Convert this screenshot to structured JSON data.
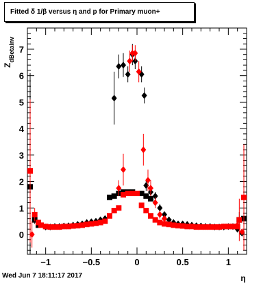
{
  "title": "Fitted δ 1/β versus η and p for Primary muon+",
  "timestamp": "Wed Jun  7 18:11:17 2017",
  "chart_data": {
    "type": "scatter",
    "xlabel": "η",
    "ylabel_main": "Z",
    "ylabel_sub": "dBetaInv",
    "xlim": [
      -1.2,
      1.2
    ],
    "ylim": [
      -0.75,
      7.8
    ],
    "xticks": [
      -1,
      -0.5,
      0,
      0.5,
      1
    ],
    "xtick_labels": [
      "−1",
      "−0.5",
      "0",
      "0.5",
      "1"
    ],
    "yticks": [
      0,
      1,
      2,
      3,
      4,
      5,
      6,
      7
    ],
    "ytick_labels": [
      "0",
      "1",
      "2",
      "3",
      "4",
      "5",
      "6",
      "7"
    ],
    "series": [
      {
        "color": "#000000",
        "points": [
          {
            "x": -1.17,
            "y": 1.8,
            "err": 4.3,
            "marker": "square"
          },
          {
            "x": -1.12,
            "y": 0.55,
            "err": 0.15,
            "marker": "square"
          },
          {
            "x": -1.08,
            "y": 0.35,
            "err": 0.1,
            "marker": "square"
          },
          {
            "x": -0.3,
            "y": 1.4,
            "err": 0.08,
            "marker": "square"
          },
          {
            "x": -0.25,
            "y": 1.45,
            "err": 0.08,
            "marker": "square"
          },
          {
            "x": -0.2,
            "y": 1.55,
            "err": 0.08,
            "marker": "square"
          },
          {
            "x": -0.15,
            "y": 1.6,
            "err": 0.06,
            "marker": "square"
          },
          {
            "x": -0.1,
            "y": 1.6,
            "err": 0.06,
            "marker": "square"
          },
          {
            "x": -0.05,
            "y": 1.6,
            "err": 0.06,
            "marker": "square"
          },
          {
            "x": 0.05,
            "y": 1.55,
            "err": 0.06,
            "marker": "square"
          },
          {
            "x": 0.1,
            "y": 1.45,
            "err": 0.06,
            "marker": "square"
          },
          {
            "x": 0.15,
            "y": 1.35,
            "err": 0.06,
            "marker": "square"
          },
          {
            "x": 1.12,
            "y": 0.55,
            "err": 0.3,
            "marker": "square"
          },
          {
            "x": 1.17,
            "y": 0.6,
            "err": 0.5,
            "marker": "square"
          },
          {
            "x": -0.25,
            "y": 5.15,
            "err": 1.0,
            "marker": "diamond"
          },
          {
            "x": -0.2,
            "y": 6.35,
            "err": 0.45,
            "marker": "diamond"
          },
          {
            "x": -0.15,
            "y": 6.4,
            "err": 0.45,
            "marker": "diamond"
          },
          {
            "x": -0.1,
            "y": 6.05,
            "err": 0.3,
            "marker": "diamond"
          },
          {
            "x": -0.05,
            "y": 6.8,
            "err": 0.4,
            "marker": "diamond"
          },
          {
            "x": -0.02,
            "y": 6.55,
            "err": 0.3,
            "marker": "diamond"
          },
          {
            "x": 0.05,
            "y": 6.05,
            "err": 0.3,
            "marker": "diamond"
          },
          {
            "x": 0.08,
            "y": 5.25,
            "err": 0.3,
            "marker": "diamond"
          },
          {
            "x": 0.1,
            "y": 1.85,
            "err": 0.2,
            "marker": "diamond"
          },
          {
            "x": 0.15,
            "y": 1.6,
            "err": 0.15,
            "marker": "diamond"
          },
          {
            "x": 0.2,
            "y": 1.45,
            "err": 0.15,
            "marker": "diamond"
          },
          {
            "x": 0.25,
            "y": 1.0,
            "err": 0.15,
            "marker": "diamond"
          },
          {
            "x": 0.3,
            "y": 0.75,
            "err": 0.1,
            "marker": "diamond"
          },
          {
            "x": 0.35,
            "y": 0.55,
            "err": 0.1,
            "marker": "diamond"
          },
          {
            "x": -1.0,
            "y": 0.28,
            "err": 0.05,
            "marker": "diamond"
          },
          {
            "x": -0.95,
            "y": 0.28,
            "err": 0.05,
            "marker": "diamond"
          },
          {
            "x": -0.9,
            "y": 0.3,
            "err": 0.05,
            "marker": "diamond"
          },
          {
            "x": -0.85,
            "y": 0.3,
            "err": 0.05,
            "marker": "diamond"
          },
          {
            "x": -0.8,
            "y": 0.32,
            "err": 0.05,
            "marker": "diamond"
          },
          {
            "x": -0.75,
            "y": 0.33,
            "err": 0.05,
            "marker": "diamond"
          },
          {
            "x": -0.7,
            "y": 0.35,
            "err": 0.05,
            "marker": "diamond"
          },
          {
            "x": -0.65,
            "y": 0.38,
            "err": 0.05,
            "marker": "diamond"
          },
          {
            "x": -0.6,
            "y": 0.4,
            "err": 0.05,
            "marker": "diamond"
          },
          {
            "x": -0.55,
            "y": 0.45,
            "err": 0.05,
            "marker": "diamond"
          },
          {
            "x": -0.5,
            "y": 0.48,
            "err": 0.05,
            "marker": "diamond"
          },
          {
            "x": -0.45,
            "y": 0.5,
            "err": 0.05,
            "marker": "diamond"
          },
          {
            "x": -0.4,
            "y": 0.55,
            "err": 0.05,
            "marker": "diamond"
          },
          {
            "x": -0.35,
            "y": 0.6,
            "err": 0.05,
            "marker": "diamond"
          },
          {
            "x": 0.4,
            "y": 0.45,
            "err": 0.05,
            "marker": "diamond"
          },
          {
            "x": 0.45,
            "y": 0.4,
            "err": 0.05,
            "marker": "diamond"
          },
          {
            "x": 0.5,
            "y": 0.4,
            "err": 0.05,
            "marker": "diamond"
          },
          {
            "x": 0.55,
            "y": 0.38,
            "err": 0.05,
            "marker": "diamond"
          },
          {
            "x": 0.6,
            "y": 0.35,
            "err": 0.05,
            "marker": "diamond"
          },
          {
            "x": 0.65,
            "y": 0.33,
            "err": 0.05,
            "marker": "diamond"
          },
          {
            "x": 0.7,
            "y": 0.32,
            "err": 0.05,
            "marker": "diamond"
          },
          {
            "x": 0.75,
            "y": 0.3,
            "err": 0.05,
            "marker": "diamond"
          },
          {
            "x": 0.8,
            "y": 0.3,
            "err": 0.05,
            "marker": "diamond"
          },
          {
            "x": 0.85,
            "y": 0.28,
            "err": 0.05,
            "marker": "diamond"
          },
          {
            "x": 0.9,
            "y": 0.28,
            "err": 0.05,
            "marker": "diamond"
          },
          {
            "x": 0.95,
            "y": 0.28,
            "err": 0.05,
            "marker": "diamond"
          },
          {
            "x": 1.0,
            "y": 0.3,
            "err": 0.05,
            "marker": "diamond"
          },
          {
            "x": 1.05,
            "y": 0.3,
            "err": 0.05,
            "marker": "diamond"
          },
          {
            "x": 1.1,
            "y": 0.2,
            "err": 0.08,
            "marker": "diamond"
          },
          {
            "x": 1.15,
            "y": 0.05,
            "err": 0.1,
            "marker": "diamond"
          }
        ]
      },
      {
        "color": "#ff0000",
        "points": [
          {
            "x": -1.17,
            "y": 2.4,
            "err": 2.7,
            "marker": "square"
          },
          {
            "x": -1.15,
            "y": 0.0,
            "err": 0.5,
            "marker": "diamond"
          },
          {
            "x": -1.12,
            "y": 0.75,
            "err": 0.25,
            "marker": "square"
          },
          {
            "x": -1.08,
            "y": 0.45,
            "err": 0.1,
            "marker": "square"
          },
          {
            "x": -1.05,
            "y": 0.35,
            "err": 0.05,
            "marker": "square"
          },
          {
            "x": -1.0,
            "y": 0.3,
            "err": 0.05,
            "marker": "square"
          },
          {
            "x": -0.95,
            "y": 0.28,
            "err": 0.05,
            "marker": "square"
          },
          {
            "x": -0.9,
            "y": 0.28,
            "err": 0.05,
            "marker": "square"
          },
          {
            "x": -0.85,
            "y": 0.28,
            "err": 0.05,
            "marker": "square"
          },
          {
            "x": -0.8,
            "y": 0.3,
            "err": 0.05,
            "marker": "square"
          },
          {
            "x": -0.75,
            "y": 0.3,
            "err": 0.05,
            "marker": "square"
          },
          {
            "x": -0.7,
            "y": 0.32,
            "err": 0.05,
            "marker": "square"
          },
          {
            "x": -0.65,
            "y": 0.33,
            "err": 0.05,
            "marker": "square"
          },
          {
            "x": -0.6,
            "y": 0.35,
            "err": 0.05,
            "marker": "square"
          },
          {
            "x": -0.55,
            "y": 0.38,
            "err": 0.05,
            "marker": "square"
          },
          {
            "x": -0.5,
            "y": 0.4,
            "err": 0.05,
            "marker": "square"
          },
          {
            "x": -0.45,
            "y": 0.42,
            "err": 0.05,
            "marker": "square"
          },
          {
            "x": -0.4,
            "y": 0.45,
            "err": 0.05,
            "marker": "square"
          },
          {
            "x": -0.35,
            "y": 0.5,
            "err": 0.05,
            "marker": "square"
          },
          {
            "x": -0.3,
            "y": 0.7,
            "err": 0.06,
            "marker": "square"
          },
          {
            "x": -0.25,
            "y": 0.9,
            "err": 0.06,
            "marker": "square"
          },
          {
            "x": -0.2,
            "y": 1.0,
            "err": 0.06,
            "marker": "square"
          },
          {
            "x": -0.15,
            "y": 1.5,
            "err": 0.06,
            "marker": "square"
          },
          {
            "x": -0.1,
            "y": 1.55,
            "err": 0.06,
            "marker": "square"
          },
          {
            "x": -0.05,
            "y": 1.55,
            "err": 0.06,
            "marker": "square"
          },
          {
            "x": 0.0,
            "y": 1.55,
            "err": 0.06,
            "marker": "square"
          },
          {
            "x": 0.05,
            "y": 1.1,
            "err": 0.06,
            "marker": "square"
          },
          {
            "x": 0.1,
            "y": 0.9,
            "err": 0.06,
            "marker": "square"
          },
          {
            "x": 0.15,
            "y": 0.7,
            "err": 0.06,
            "marker": "square"
          },
          {
            "x": 0.2,
            "y": 0.55,
            "err": 0.05,
            "marker": "square"
          },
          {
            "x": 0.25,
            "y": 0.45,
            "err": 0.05,
            "marker": "square"
          },
          {
            "x": 0.3,
            "y": 0.4,
            "err": 0.05,
            "marker": "square"
          },
          {
            "x": 0.35,
            "y": 0.38,
            "err": 0.05,
            "marker": "square"
          },
          {
            "x": 0.4,
            "y": 0.35,
            "err": 0.05,
            "marker": "square"
          },
          {
            "x": 0.45,
            "y": 0.33,
            "err": 0.05,
            "marker": "square"
          },
          {
            "x": 0.5,
            "y": 0.32,
            "err": 0.05,
            "marker": "square"
          },
          {
            "x": 0.55,
            "y": 0.3,
            "err": 0.05,
            "marker": "square"
          },
          {
            "x": 0.6,
            "y": 0.3,
            "err": 0.05,
            "marker": "square"
          },
          {
            "x": 0.65,
            "y": 0.28,
            "err": 0.05,
            "marker": "square"
          },
          {
            "x": 0.7,
            "y": 0.28,
            "err": 0.05,
            "marker": "square"
          },
          {
            "x": 0.75,
            "y": 0.28,
            "err": 0.05,
            "marker": "square"
          },
          {
            "x": 0.8,
            "y": 0.28,
            "err": 0.05,
            "marker": "square"
          },
          {
            "x": 0.85,
            "y": 0.28,
            "err": 0.05,
            "marker": "square"
          },
          {
            "x": 0.9,
            "y": 0.28,
            "err": 0.05,
            "marker": "square"
          },
          {
            "x": 0.95,
            "y": 0.3,
            "err": 0.05,
            "marker": "square"
          },
          {
            "x": 1.0,
            "y": 0.3,
            "err": 0.05,
            "marker": "square"
          },
          {
            "x": 1.05,
            "y": 0.3,
            "err": 0.05,
            "marker": "square"
          },
          {
            "x": 1.1,
            "y": 0.3,
            "err": 0.1,
            "marker": "square"
          },
          {
            "x": 1.12,
            "y": 0.55,
            "err": 0.8,
            "marker": "square"
          },
          {
            "x": 1.17,
            "y": 1.4,
            "err": 2.0,
            "marker": "square"
          },
          {
            "x": -0.2,
            "y": 1.75,
            "err": 0.3,
            "marker": "diamond"
          },
          {
            "x": -0.15,
            "y": 2.45,
            "err": 0.6,
            "marker": "diamond"
          },
          {
            "x": -0.08,
            "y": 6.55,
            "err": 0.4,
            "marker": "diamond"
          },
          {
            "x": -0.05,
            "y": 6.85,
            "err": 0.3,
            "marker": "diamond"
          },
          {
            "x": -0.02,
            "y": 6.85,
            "err": 0.3,
            "marker": "diamond"
          },
          {
            "x": 0.02,
            "y": 6.15,
            "err": 0.4,
            "marker": "diamond"
          },
          {
            "x": 0.07,
            "y": 3.2,
            "err": 0.6,
            "marker": "diamond"
          },
          {
            "x": 0.12,
            "y": 2.05,
            "err": 0.4,
            "marker": "diamond"
          },
          {
            "x": 0.15,
            "y": 1.75,
            "err": 0.3,
            "marker": "diamond"
          },
          {
            "x": 0.2,
            "y": 1.2,
            "err": 0.2,
            "marker": "diamond"
          },
          {
            "x": 0.25,
            "y": 0.75,
            "err": 0.15,
            "marker": "diamond"
          },
          {
            "x": 0.3,
            "y": 0.6,
            "err": 0.1,
            "marker": "diamond"
          },
          {
            "x": 1.1,
            "y": 0.35,
            "err": 0.1,
            "marker": "diamond"
          },
          {
            "x": 1.15,
            "y": 0.1,
            "err": 0.1,
            "marker": "diamond"
          }
        ]
      }
    ]
  }
}
